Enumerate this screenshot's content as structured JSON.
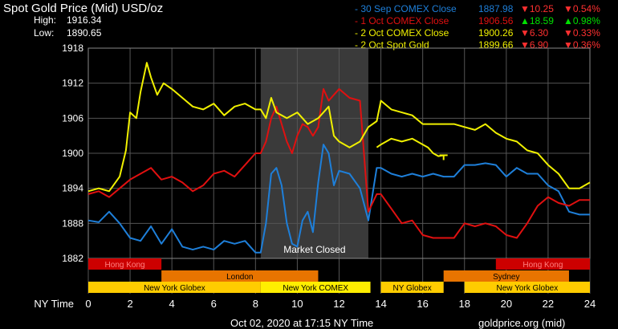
{
  "header": {
    "title": "Spot Gold Price (Mid) USD/oz",
    "high_label": "High:",
    "high_value": "1916.34",
    "low_label": "Low:",
    "low_value": "1890.65"
  },
  "legend": [
    {
      "name": "- 30 Sep COMEX Close",
      "value": "1887.98",
      "arrow": "▼",
      "change": "10.25",
      "pct_arrow": "▼",
      "pct": "0.54%",
      "color": "#1e7fd9",
      "dir": "down"
    },
    {
      "name": "- 1 Oct COMEX Close",
      "value": "1906.56",
      "arrow": "▲",
      "change": "18.59",
      "pct_arrow": "▲",
      "pct": "0.98%",
      "color": "#e01010",
      "dir": "up"
    },
    {
      "name": "- 2 Oct COMEX Close",
      "value": "1900.26",
      "arrow": "▼",
      "change": "6.30",
      "pct_arrow": "▼",
      "pct": "0.33%",
      "color": "#f0f000",
      "dir": "down"
    },
    {
      "name": "- 2 Oct Spot Gold",
      "value": "1899.66",
      "arrow": "▼",
      "change": "6.90",
      "pct_arrow": "▼",
      "pct": "0.36%",
      "color": "#f0f000",
      "dir": "down"
    }
  ],
  "colors": {
    "up": "#00e000",
    "down": "#ff3030",
    "blue": "#1e7fd9",
    "red": "#e01010",
    "yellow": "#f0f000",
    "closed": "#3a3a3a",
    "grid": "#555555"
  },
  "market_closed_label": "Market Closed",
  "xaxis_label": "NY Time",
  "footer": {
    "date": "Oct 02, 2020 at 17:15 NY Time",
    "source": "goldprice.org (mid)"
  },
  "sessions": [
    {
      "name": "Hong Kong",
      "start": 0,
      "end": 3.5,
      "row": 0,
      "color": "#cc0000",
      "text_color": "#ff8080"
    },
    {
      "name": "Hong Kong",
      "start": 19.5,
      "end": 24,
      "row": 0,
      "color": "#cc0000",
      "text_color": "#ff8080"
    },
    {
      "name": "London",
      "start": 3.5,
      "end": 11,
      "row": 1,
      "color": "#e87400",
      "text_color": "#000000"
    },
    {
      "name": "Sydney",
      "start": 17,
      "end": 23,
      "row": 1,
      "color": "#e87400",
      "text_color": "#000000"
    },
    {
      "name": "New York Globex",
      "start": 0,
      "end": 8.25,
      "row": 2,
      "color": "#ffcc00",
      "text_color": "#000000"
    },
    {
      "name": "New York COMEX",
      "start": 8.25,
      "end": 13.5,
      "row": 2,
      "color": "#ffee00",
      "text_color": "#000000"
    },
    {
      "name": "NY Globex",
      "start": 14,
      "end": 17,
      "row": 2,
      "color": "#ffcc00",
      "text_color": "#000000"
    },
    {
      "name": "New York Globex",
      "start": 18,
      "end": 24,
      "row": 2,
      "color": "#ffcc00",
      "text_color": "#000000"
    }
  ],
  "chart_data": {
    "type": "line",
    "xlabel": "NY Time",
    "ylabel": "",
    "xlim": [
      0,
      24
    ],
    "ylim": [
      1882,
      1918
    ],
    "xticks": [
      0,
      2,
      4,
      6,
      8,
      10,
      12,
      14,
      16,
      18,
      20,
      22,
      24
    ],
    "yticks": [
      1882,
      1888,
      1894,
      1900,
      1906,
      1912,
      1918
    ],
    "grid": true,
    "market_closed_range": [
      8.25,
      13.4
    ],
    "series": [
      {
        "name": "30 Sep COMEX Close",
        "color": "#1e7fd9",
        "x": [
          0,
          0.5,
          1,
          1.5,
          2,
          2.5,
          3,
          3.5,
          4,
          4.5,
          5,
          5.5,
          6,
          6.5,
          7,
          7.5,
          8,
          8.25,
          8.5,
          8.75,
          9,
          9.25,
          9.5,
          9.75,
          10,
          10.25,
          10.5,
          10.75,
          11,
          11.25,
          11.5,
          11.75,
          12,
          12.5,
          13,
          13.4,
          13.8,
          14,
          14.5,
          15,
          15.5,
          16,
          16.5,
          17,
          17.5,
          18,
          18.5,
          19,
          19.5,
          20,
          20.5,
          21,
          21.5,
          22,
          22.5,
          23,
          23.5,
          24
        ],
        "values": [
          1888.5,
          1888.2,
          1890,
          1888,
          1885.5,
          1885,
          1887.5,
          1884.5,
          1887,
          1884,
          1883.5,
          1884,
          1883.5,
          1885,
          1884.5,
          1885,
          1883,
          1883,
          1888,
          1896.5,
          1897.5,
          1894.5,
          1888,
          1884.5,
          1884,
          1888.5,
          1890,
          1886.5,
          1895,
          1901.5,
          1900,
          1894.5,
          1897,
          1896.5,
          1894,
          1888.5,
          1897.5,
          1897.5,
          1896.5,
          1896,
          1896.5,
          1896,
          1896.5,
          1896,
          1896,
          1898,
          1898,
          1898.3,
          1898,
          1896,
          1897.5,
          1896.5,
          1896.5,
          1894.5,
          1893.5,
          1890,
          1889.5,
          1889.5
        ]
      },
      {
        "name": "1 Oct COMEX Close",
        "color": "#e01010",
        "x": [
          0,
          0.5,
          1,
          1.5,
          2,
          2.5,
          3,
          3.5,
          4,
          4.5,
          5,
          5.5,
          6,
          6.5,
          7,
          7.5,
          8,
          8.25,
          8.5,
          8.75,
          9,
          9.25,
          9.5,
          9.75,
          10,
          10.25,
          10.5,
          10.75,
          11,
          11.25,
          11.5,
          11.75,
          12,
          12.5,
          13,
          13.4,
          13.8,
          14,
          14.5,
          15,
          15.5,
          16,
          16.5,
          17,
          17.5,
          18,
          18.5,
          19,
          19.5,
          20,
          20.5,
          21,
          21.5,
          22,
          22.5,
          23,
          23.5,
          24
        ],
        "values": [
          1893,
          1893.5,
          1892.5,
          1894,
          1895.5,
          1896.5,
          1897.5,
          1895.5,
          1896,
          1895,
          1893.5,
          1894.5,
          1896.5,
          1897,
          1896,
          1898,
          1900,
          1900,
          1902,
          1906,
          1908,
          1905,
          1902,
          1900,
          1903,
          1905,
          1904.5,
          1903,
          1904.5,
          1911,
          1909,
          1910,
          1911,
          1909.5,
          1909,
          1890,
          1893,
          1893,
          1890.5,
          1888,
          1888.5,
          1886,
          1885.5,
          1885.5,
          1885.5,
          1888,
          1887.5,
          1888,
          1887.5,
          1886,
          1885.5,
          1888,
          1891,
          1892.5,
          1891.5,
          1891,
          1892,
          1892
        ]
      },
      {
        "name": "2 Oct COMEX Close",
        "color": "#f0f000",
        "x": [
          0,
          0.5,
          1,
          1.5,
          1.8,
          2,
          2.3,
          2.5,
          2.8,
          3,
          3.3,
          3.6,
          4,
          4.5,
          5,
          5.5,
          6,
          6.5,
          7,
          7.5,
          8,
          8.25,
          8.5,
          8.75,
          9,
          9.5,
          10,
          10.5,
          11,
          11.5,
          11.75,
          12,
          12.5,
          13,
          13.4,
          13.8,
          14,
          14.5,
          15,
          15.5,
          16,
          16.5,
          17,
          17.5,
          18,
          18.5,
          19,
          19.5,
          20,
          20.5,
          21,
          21.5,
          22,
          22.5,
          23,
          23.5,
          24
        ],
        "values": [
          1893.5,
          1894,
          1893.5,
          1896,
          1900.5,
          1907,
          1906,
          1910.5,
          1915.5,
          1913,
          1910,
          1912,
          1911,
          1909.5,
          1908,
          1907.5,
          1908.5,
          1906.5,
          1908,
          1908.5,
          1907.5,
          1907.5,
          1906,
          1909.5,
          1907,
          1906,
          1907,
          1905,
          1906,
          1908,
          1903,
          1902,
          1901,
          1902,
          1904.5,
          1905.5,
          1909,
          1907.5,
          1907,
          1906.5,
          1905,
          1905,
          1905,
          1905,
          1904.5,
          1904,
          1905,
          1903.5,
          1902.5,
          1902,
          1900.5,
          1900,
          1898,
          1896.5,
          1894,
          1894,
          1895
        ]
      },
      {
        "name": "2 Oct Spot Gold",
        "color": "#f0f000",
        "x": [
          13.8,
          14,
          14.5,
          15,
          15.5,
          16,
          16.25,
          16.5,
          16.75,
          17
        ],
        "values": [
          1901,
          1901.5,
          1902.5,
          1902,
          1902.5,
          1901.5,
          1901,
          1900,
          1899.5,
          1899.66
        ]
      }
    ]
  }
}
